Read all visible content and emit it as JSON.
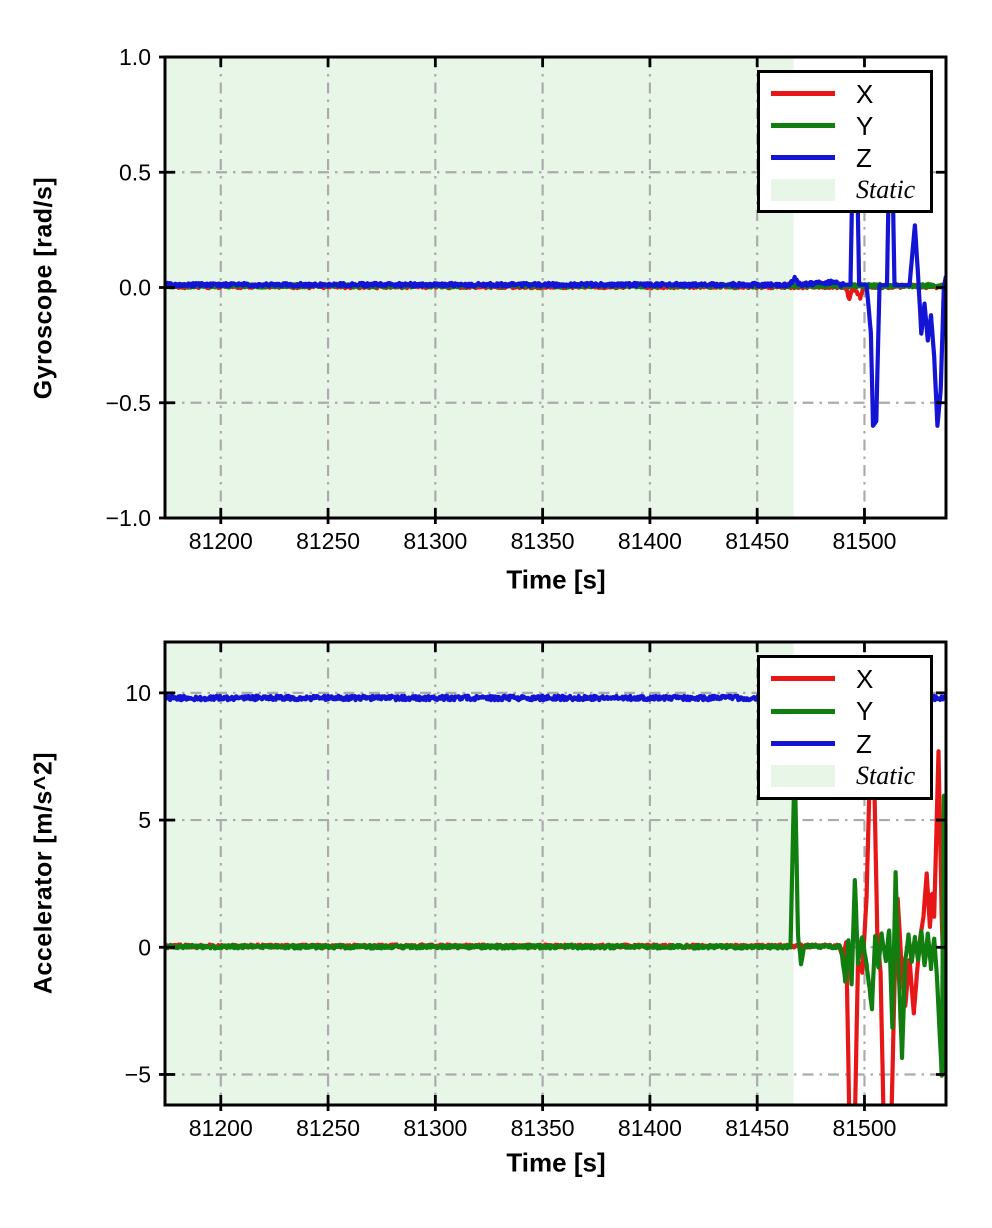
{
  "figure": {
    "background": "#ffffff",
    "description": "Two stacked IMU sensor time-series plots with a shaded Static interval"
  },
  "chart_data": [
    {
      "type": "line",
      "name": "gyroscope",
      "ylabel": "Gyroscope [rad/s]",
      "xlabel": "Time [s]",
      "xlim": [
        81174,
        81538
      ],
      "ylim": [
        -1.0,
        1.0
      ],
      "grid": "dash-dot",
      "legend_position": "upper right",
      "x_ticks": [
        {
          "v": 81200,
          "label": "81200"
        },
        {
          "v": 81250,
          "label": "81250"
        },
        {
          "v": 81300,
          "label": "81300"
        },
        {
          "v": 81350,
          "label": "81350"
        },
        {
          "v": 81400,
          "label": "81400"
        },
        {
          "v": 81450,
          "label": "81450"
        },
        {
          "v": 81500,
          "label": "81500"
        }
      ],
      "y_ticks": [
        {
          "v": 1.0,
          "label": "1.0"
        },
        {
          "v": 0.5,
          "label": "0.5"
        },
        {
          "v": 0.0,
          "label": "0.0"
        },
        {
          "v": -0.5,
          "label": "−0.5"
        },
        {
          "v": -1.0,
          "label": "−1.0"
        }
      ],
      "static_region": {
        "range": [
          81174,
          81467
        ],
        "color": "#e8f6e8",
        "label": "Static"
      },
      "legend": [
        {
          "label": "X",
          "swatch": "line",
          "color": "#e81717"
        },
        {
          "label": "Y",
          "swatch": "line",
          "color": "#107f10"
        },
        {
          "label": "Z",
          "swatch": "line",
          "color": "#1414d4"
        },
        {
          "label": "Static",
          "swatch": "patch",
          "color": "#e8f6e8"
        }
      ],
      "series": [
        {
          "name": "X",
          "color": "#e81717",
          "points": [
            [
              81174,
              0.005
            ],
            [
              81491,
              0.005
            ],
            [
              81493,
              -0.05
            ],
            [
              81494.5,
              0.0
            ],
            [
              81498,
              -0.04
            ],
            [
              81500,
              0.005
            ],
            [
              81538,
              0.005
            ]
          ],
          "noise": [
            {
              "range": [
                81174,
                81538
              ],
              "amp": 0.008
            }
          ]
        },
        {
          "name": "Y",
          "color": "#107f10",
          "points": [
            [
              81174,
              0.008
            ],
            [
              81538,
              0.008
            ]
          ],
          "noise": [
            {
              "range": [
                81174,
                81538
              ],
              "amp": 0.008
            }
          ]
        },
        {
          "name": "Z",
          "color": "#1414d4",
          "points": [
            [
              81174,
              0.012
            ],
            [
              81465,
              0.012
            ],
            [
              81467.5,
              0.04
            ],
            [
              81470,
              0.012
            ],
            [
              81487,
              0.025
            ],
            [
              81489,
              0.012
            ],
            [
              81493.5,
              0.012
            ],
            [
              81494.5,
              0.55
            ],
            [
              81496.5,
              0.55
            ],
            [
              81497.5,
              0.012
            ],
            [
              81501,
              0.012
            ],
            [
              81503,
              -0.2
            ],
            [
              81504,
              -0.6
            ],
            [
              81505.5,
              -0.58
            ],
            [
              81507,
              0.01
            ],
            [
              81510.5,
              0.01
            ],
            [
              81511.5,
              0.55
            ],
            [
              81513,
              0.55
            ],
            [
              81514,
              0.01
            ],
            [
              81521,
              0.01
            ],
            [
              81523.5,
              0.27
            ],
            [
              81525,
              0.05
            ],
            [
              81526.5,
              -0.2
            ],
            [
              81528,
              -0.07
            ],
            [
              81529.5,
              -0.23
            ],
            [
              81531,
              -0.12
            ],
            [
              81532.5,
              -0.3
            ],
            [
              81534,
              -0.6
            ],
            [
              81535.5,
              -0.45
            ],
            [
              81537,
              0.0
            ],
            [
              81538,
              0.05
            ]
          ],
          "noise": [
            {
              "range": [
                81174,
                81490
              ],
              "amp": 0.008
            }
          ]
        }
      ]
    },
    {
      "type": "line",
      "name": "accelerator",
      "ylabel": "Accelerator [m/s^2]",
      "xlabel": "Time [s]",
      "xlim": [
        81174,
        81538
      ],
      "ylim": [
        -6.2,
        12.0
      ],
      "grid": "dash-dot",
      "legend_position": "upper right",
      "x_ticks": [
        {
          "v": 81200,
          "label": "81200"
        },
        {
          "v": 81250,
          "label": "81250"
        },
        {
          "v": 81300,
          "label": "81300"
        },
        {
          "v": 81350,
          "label": "81350"
        },
        {
          "v": 81400,
          "label": "81400"
        },
        {
          "v": 81450,
          "label": "81450"
        },
        {
          "v": 81500,
          "label": "81500"
        }
      ],
      "y_ticks": [
        {
          "v": 10,
          "label": "10"
        },
        {
          "v": 5,
          "label": "5"
        },
        {
          "v": 0,
          "label": "0"
        },
        {
          "v": -5,
          "label": "−5"
        }
      ],
      "static_region": {
        "range": [
          81174,
          81467
        ],
        "color": "#e8f6e8",
        "label": "Static"
      },
      "legend": [
        {
          "label": "X",
          "swatch": "line",
          "color": "#e81717"
        },
        {
          "label": "Y",
          "swatch": "line",
          "color": "#107f10"
        },
        {
          "label": "Z",
          "swatch": "line",
          "color": "#1414d4"
        },
        {
          "label": "Static",
          "swatch": "patch",
          "color": "#e8f6e8"
        }
      ],
      "series": [
        {
          "name": "X",
          "color": "#e81717",
          "points": [
            [
              81174,
              0.05
            ],
            [
              81488,
              0.05
            ],
            [
              81490,
              -0.4
            ],
            [
              81491.5,
              0.2
            ],
            [
              81493,
              -7
            ],
            [
              81495.5,
              -7
            ],
            [
              81497,
              -0.5
            ],
            [
              81499,
              -1
            ],
            [
              81501,
              2
            ],
            [
              81502.5,
              7
            ],
            [
              81504.5,
              6.8
            ],
            [
              81506,
              0.5
            ],
            [
              81507.5,
              -1
            ],
            [
              81509,
              -7
            ],
            [
              81512.5,
              -7
            ],
            [
              81514,
              -1.5
            ],
            [
              81515.5,
              1.9
            ],
            [
              81517,
              -0.3
            ],
            [
              81519,
              -2.3
            ],
            [
              81521,
              -0.5
            ],
            [
              81523,
              -2.6
            ],
            [
              81524.5,
              -1
            ],
            [
              81526,
              0.4
            ],
            [
              81527.5,
              1.2
            ],
            [
              81529,
              2.9
            ],
            [
              81530.5,
              0.8
            ],
            [
              81531.5,
              2.1
            ],
            [
              81532.5,
              1.2
            ],
            [
              81534.5,
              7.7
            ],
            [
              81536,
              1.2
            ],
            [
              81537,
              -1.6
            ],
            [
              81538,
              -1.4
            ]
          ],
          "noise": [
            {
              "range": [
                81174,
                81489
              ],
              "amp": 0.06
            }
          ]
        },
        {
          "name": "Y",
          "color": "#107f10",
          "points": [
            [
              81174,
              0.02
            ],
            [
              81465.5,
              0.02
            ],
            [
              81467.5,
              7.4
            ],
            [
              81469,
              0.5
            ],
            [
              81470.5,
              -0.7
            ],
            [
              81472,
              0.05
            ],
            [
              81489,
              0.02
            ],
            [
              81491,
              -1.3
            ],
            [
              81492.5,
              0.3
            ],
            [
              81494,
              -1.5
            ],
            [
              81495.5,
              2.7
            ],
            [
              81497,
              -0.6
            ],
            [
              81499,
              0.4
            ],
            [
              81501,
              -0.7
            ],
            [
              81503.5,
              -2.4
            ],
            [
              81505,
              0.5
            ],
            [
              81506.5,
              -0.8
            ],
            [
              81508,
              0.5
            ],
            [
              81510,
              -0.5
            ],
            [
              81511.5,
              0.7
            ],
            [
              81513,
              -3.2
            ],
            [
              81514.5,
              2.9
            ],
            [
              81516,
              -1
            ],
            [
              81517.5,
              -4.3
            ],
            [
              81519,
              -0.6
            ],
            [
              81520.5,
              0.5
            ],
            [
              81522,
              -0.6
            ],
            [
              81523.5,
              0.4
            ],
            [
              81525,
              -0.5
            ],
            [
              81526.5,
              0.6
            ],
            [
              81528,
              -0.7
            ],
            [
              81529.5,
              0.5
            ],
            [
              81531,
              -0.8
            ],
            [
              81532.5,
              0.4
            ],
            [
              81534,
              -1.5
            ],
            [
              81536,
              -5.0
            ],
            [
              81537,
              6.0
            ],
            [
              81538,
              -5.0
            ]
          ],
          "noise": [
            {
              "range": [
                81174,
                81538
              ],
              "amp": 0.07
            }
          ]
        },
        {
          "name": "Z",
          "color": "#1414d4",
          "points": [
            [
              81174,
              9.8
            ],
            [
              81538,
              9.8
            ]
          ],
          "noise": [
            {
              "range": [
                81174,
                81538
              ],
              "amp": 0.09
            }
          ]
        }
      ]
    }
  ]
}
